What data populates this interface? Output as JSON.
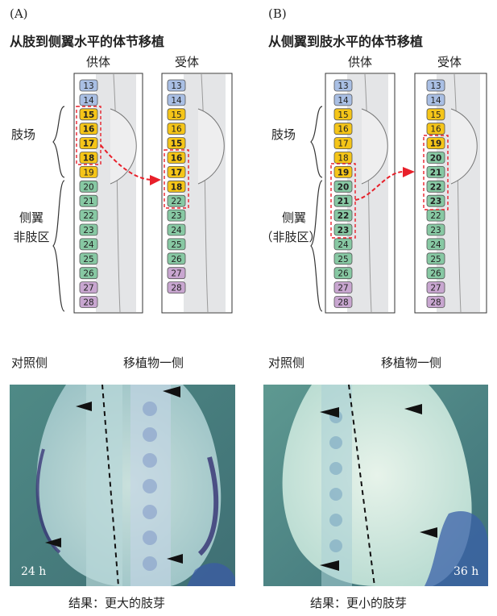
{
  "panels": [
    {
      "letter": "(A)",
      "title": "从肢到侧翼水平的体节移植",
      "donor_label": "供体",
      "host_label": "受体",
      "region_limb": "肢场",
      "region_flank_1": "侧翼",
      "region_flank_2": "非肢区",
      "question": "?",
      "donor_somites": [
        "13",
        "14",
        "15",
        "16",
        "17",
        "18",
        "19",
        "20",
        "21",
        "22",
        "23",
        "24",
        "25",
        "26",
        "27",
        "28"
      ],
      "host_somites": [
        "13",
        "14",
        "15",
        "16",
        "15",
        "16",
        "17",
        "18",
        "22",
        "23",
        "24",
        "25",
        "26",
        "27",
        "28"
      ],
      "grafted_somites": [
        "15",
        "16",
        "17",
        "18"
      ],
      "photo_left_label": "对照侧",
      "photo_right_label": "移植物一侧",
      "photo_time": "24 h",
      "result": "结果：更大的肢芽"
    },
    {
      "letter": "(B)",
      "title": "从侧翼到肢水平的体节移植",
      "donor_label": "供体",
      "host_label": "受体",
      "region_limb": "肢场",
      "region_flank_1": "侧翼",
      "region_flank_2": "（非肢区）",
      "question": "?",
      "donor_somites": [
        "13",
        "14",
        "15",
        "16",
        "17",
        "18",
        "19",
        "20",
        "21",
        "22",
        "23",
        "24",
        "25",
        "26",
        "27",
        "28"
      ],
      "host_somites": [
        "13",
        "14",
        "15",
        "16",
        "19",
        "20",
        "21",
        "22",
        "23",
        "22",
        "23",
        "24",
        "25",
        "26",
        "27",
        "28"
      ],
      "grafted_somites": [
        "19",
        "20",
        "21",
        "22",
        "23"
      ],
      "photo_left_label": "对照侧",
      "photo_right_label": "移植物一侧",
      "photo_time": "36 h",
      "result": "结果：更小的肢芽"
    }
  ],
  "colors": {
    "blue": "#a9bfe4",
    "yellow": "#f5c518",
    "green": "#87c8a3",
    "purple": "#c8a6d0",
    "graft_arrow": "#e8202a"
  }
}
